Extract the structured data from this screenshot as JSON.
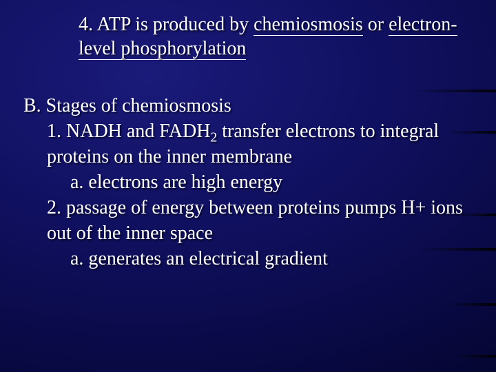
{
  "background": {
    "gradient_center": "#1a1a7a",
    "gradient_mid": "#101060",
    "gradient_outer": "#080840",
    "gradient_edge": "#020220"
  },
  "text_color": "#ffffff",
  "font_family": "Times New Roman",
  "base_fontsize_pt": 21,
  "heading": {
    "number": "4.",
    "pre": "ATP is produced by ",
    "u1": "chemiosmosis",
    "mid": " or ",
    "u2": "electron-level phosphorylation"
  },
  "section_b": {
    "title": "B. Stages of chemiosmosis",
    "item1_pre": "1. NADH and FADH",
    "item1_sub": "2",
    "item1_post": " transfer electrons to integral proteins on the inner membrane",
    "item1a": "a. electrons are high energy",
    "item2": "2. passage of energy between proteins pumps H+ ions out of the inner space",
    "item2a": "a. generates an electrical gradient"
  }
}
